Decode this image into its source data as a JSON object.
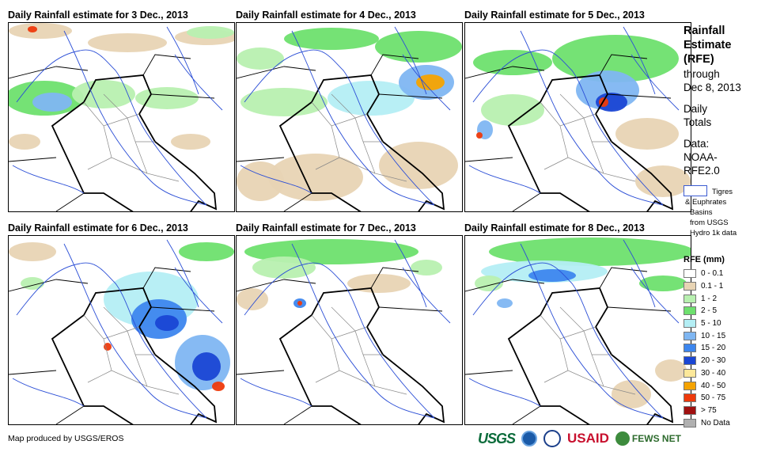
{
  "panels": [
    {
      "title": "Daily Rainfall estimate for 3 Dec., 2013"
    },
    {
      "title": "Daily Rainfall estimate for 4 Dec., 2013"
    },
    {
      "title": "Daily Rainfall estimate for 5 Dec., 2013"
    },
    {
      "title": "Daily Rainfall estimate for 6 Dec., 2013"
    },
    {
      "title": "Daily Rainfall estimate for 7 Dec., 2013"
    },
    {
      "title": "Daily Rainfall estimate for 8 Dec., 2013"
    }
  ],
  "legend": {
    "title_line1": "Rainfall",
    "title_line2": "Estimate",
    "title_line3": "(RFE)",
    "through": "through",
    "date": "Dec 8, 2013",
    "daily": "Daily",
    "totals": "Totals",
    "data_label": "Data:",
    "data_source1": "NOAA-",
    "data_source2": "RFE2.0",
    "basin_line1": "Tigres",
    "basin_line2": "& Euphrates",
    "basin_line3": "Basins",
    "basin_line4": "from USGS",
    "basin_line5": "Hydro 1k data",
    "rfe_title": "RFE (mm)",
    "classes": [
      {
        "label": "0 - 0.1",
        "color": "#ffffff"
      },
      {
        "label": "0.1 - 1",
        "color": "#e8d4b4"
      },
      {
        "label": "1 - 2",
        "color": "#b8f0b0"
      },
      {
        "label": "2 - 5",
        "color": "#6ee06e"
      },
      {
        "label": "5 - 10",
        "color": "#b4eef4"
      },
      {
        "label": "10 - 15",
        "color": "#7fb6f2"
      },
      {
        "label": "15 - 20",
        "color": "#3d86ee"
      },
      {
        "label": "20 - 30",
        "color": "#1a46d4"
      },
      {
        "label": "30 - 40",
        "color": "#fce89a"
      },
      {
        "label": "40 - 50",
        "color": "#f5a300"
      },
      {
        "label": "50 - 75",
        "color": "#ee3a0c"
      },
      {
        "label": "> 75",
        "color": "#a01010"
      },
      {
        "label": "No Data",
        "color": "#b0b0b0"
      }
    ]
  },
  "footer": "Map produced by USGS/EROS",
  "logos": {
    "usgs": "USGS",
    "usaid": "USAID",
    "fews": "FEWS NET"
  }
}
